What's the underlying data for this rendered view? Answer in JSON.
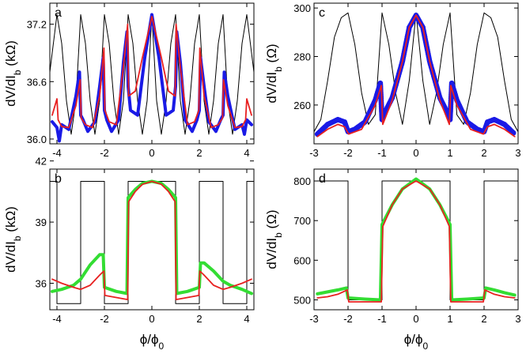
{
  "chart_data": [
    {
      "panel": "a",
      "type": "line",
      "ylabel_main": "dV/dI",
      "ylabel_sub": "b",
      "ylabel_unit": " (kΩ)",
      "xlim": [
        -4.3,
        4.3
      ],
      "ylim": [
        35.95,
        37.42
      ],
      "xticks": [
        -4,
        -2,
        0,
        2,
        4
      ],
      "xticklabels": [
        "-4",
        "-2",
        "0",
        "2",
        "4"
      ],
      "yticks": [
        36.0,
        36.6,
        37.2
      ],
      "yticklabels": [
        "36.0",
        "36.6",
        "37.2"
      ],
      "series": [
        {
          "role": "reference",
          "color": "#000000",
          "style": "thin-line",
          "x": [
            -4.3,
            -4.0,
            -3.8,
            -3.6,
            -3.4,
            -3.2,
            -3.0,
            -2.8,
            -2.6,
            -2.4,
            -2.2,
            -2.0,
            -1.8,
            -1.6,
            -1.4,
            -1.2,
            -1.0,
            -0.8,
            -0.6,
            -0.4,
            -0.2,
            0.0,
            0.2,
            0.4,
            0.6,
            0.8,
            1.0,
            1.2,
            1.4,
            1.6,
            1.8,
            2.0,
            2.2,
            2.4,
            2.6,
            2.8,
            3.0,
            3.2,
            3.4,
            3.6,
            3.8,
            4.0,
            4.3
          ],
          "y": [
            36.7,
            37.3,
            37.0,
            36.4,
            36.05,
            36.4,
            37.3,
            37.0,
            36.4,
            36.05,
            36.4,
            37.3,
            37.0,
            36.4,
            36.05,
            36.4,
            37.3,
            37.0,
            36.4,
            36.05,
            36.4,
            37.3,
            36.4,
            36.05,
            36.4,
            37.0,
            37.3,
            36.4,
            36.05,
            36.4,
            37.0,
            37.3,
            36.4,
            36.05,
            36.4,
            37.0,
            37.3,
            36.4,
            36.05,
            36.4,
            37.0,
            37.3,
            36.7
          ]
        },
        {
          "role": "measured",
          "color": "#1a1ae6",
          "style": "thick-line",
          "x": [
            -4.2,
            -4.0,
            -3.9,
            -3.8,
            -3.5,
            -3.2,
            -3.05,
            -3.0,
            -2.9,
            -2.7,
            -2.4,
            -2.2,
            -2.05,
            -2.0,
            -1.9,
            -1.7,
            -1.4,
            -1.2,
            -1.05,
            -1.0,
            -0.9,
            -0.6,
            -0.3,
            0.0,
            0.3,
            0.6,
            0.9,
            1.0,
            1.05,
            1.2,
            1.4,
            1.7,
            1.9,
            2.0,
            2.05,
            2.2,
            2.4,
            2.7,
            2.9,
            3.0,
            3.05,
            3.2,
            3.5,
            3.8,
            3.9,
            4.0,
            4.2
          ],
          "y": [
            36.18,
            36.12,
            35.98,
            36.15,
            36.1,
            36.45,
            36.7,
            36.25,
            36.2,
            36.08,
            36.18,
            36.55,
            36.85,
            36.3,
            36.2,
            36.08,
            36.2,
            36.8,
            37.12,
            36.55,
            36.3,
            36.25,
            36.85,
            37.3,
            36.85,
            36.25,
            36.3,
            36.55,
            37.12,
            36.8,
            36.2,
            36.08,
            36.2,
            36.3,
            36.85,
            36.55,
            36.18,
            36.08,
            36.2,
            36.25,
            36.7,
            36.45,
            36.1,
            36.15,
            36.05,
            36.2,
            36.15
          ]
        },
        {
          "role": "fit",
          "color": "#e82020",
          "style": "medium-line",
          "x": [
            -4.2,
            -4.0,
            -3.95,
            -3.8,
            -3.5,
            -3.2,
            -3.02,
            -2.98,
            -2.8,
            -2.5,
            -2.2,
            -2.02,
            -1.98,
            -1.8,
            -1.5,
            -1.2,
            -1.02,
            -0.98,
            -0.7,
            -0.4,
            0.0,
            0.4,
            0.7,
            0.98,
            1.02,
            1.2,
            1.5,
            1.8,
            1.98,
            2.02,
            2.2,
            2.5,
            2.8,
            2.98,
            3.02,
            3.2,
            3.5,
            3.8,
            3.95,
            4.0,
            4.2
          ],
          "y": [
            36.25,
            36.42,
            36.2,
            36.13,
            36.12,
            36.35,
            36.62,
            36.22,
            36.15,
            36.12,
            36.45,
            36.95,
            36.3,
            36.18,
            36.15,
            36.75,
            37.2,
            36.45,
            36.5,
            36.85,
            37.28,
            36.85,
            36.5,
            36.45,
            37.2,
            36.75,
            36.15,
            36.18,
            36.3,
            36.95,
            36.45,
            36.12,
            36.15,
            36.22,
            36.62,
            36.35,
            36.12,
            36.13,
            36.2,
            36.42,
            36.25
          ]
        }
      ]
    },
    {
      "panel": "b",
      "type": "line",
      "ylabel_main": "dV/dI",
      "ylabel_sub": "b",
      "ylabel_unit": " (kΩ)",
      "xlabel": "ϕ/ϕ",
      "xlabel_sub": "0",
      "xlim": [
        -4.3,
        4.3
      ],
      "ylim": [
        34.7,
        41.6
      ],
      "xticks": [
        -4,
        -2,
        0,
        2,
        4
      ],
      "xticklabels": [
        "-4",
        "-2",
        "0",
        "2",
        "4"
      ],
      "yticks": [
        36,
        39,
        42
      ],
      "yticklabels": [
        "36",
        "39",
        "42"
      ],
      "series": [
        {
          "role": "reference",
          "color": "#000000",
          "style": "thin-line",
          "x": [
            -4.3,
            -4.0,
            -4.0,
            -3.0,
            -3.0,
            -2.0,
            -2.0,
            -1.0,
            -1.0,
            1.0,
            1.0,
            2.0,
            2.0,
            3.0,
            3.0,
            4.0,
            4.0,
            4.3
          ],
          "y": [
            41.0,
            41.0,
            35.0,
            35.0,
            41.0,
            41.0,
            35.0,
            35.0,
            41.0,
            41.0,
            35.0,
            35.0,
            41.0,
            41.0,
            35.0,
            35.0,
            41.0,
            41.0
          ]
        },
        {
          "role": "measured",
          "color": "#33dd33",
          "style": "thick-line",
          "x": [
            -4.2,
            -3.8,
            -3.3,
            -3.0,
            -2.6,
            -2.2,
            -2.05,
            -2.0,
            -1.5,
            -1.05,
            -1.0,
            -0.7,
            -0.4,
            0.0,
            0.4,
            0.7,
            1.0,
            1.05,
            1.5,
            2.0,
            2.05,
            2.2,
            2.6,
            3.0,
            3.3,
            3.8,
            4.2
          ],
          "y": [
            35.6,
            35.7,
            35.9,
            36.2,
            36.9,
            37.4,
            37.4,
            35.8,
            35.6,
            35.5,
            40.2,
            40.6,
            40.9,
            41.0,
            40.9,
            40.6,
            40.2,
            35.5,
            35.6,
            35.8,
            37.0,
            37.0,
            36.6,
            36.1,
            35.9,
            35.7,
            35.5
          ]
        },
        {
          "role": "fit",
          "color": "#e82020",
          "style": "medium-line",
          "x": [
            -4.2,
            -3.8,
            -3.3,
            -3.0,
            -2.6,
            -2.2,
            -2.02,
            -1.98,
            -1.5,
            -1.02,
            -0.98,
            -0.7,
            -0.4,
            0.0,
            0.4,
            0.7,
            0.98,
            1.02,
            1.5,
            1.98,
            2.02,
            2.2,
            2.6,
            3.0,
            3.3,
            3.8,
            4.2
          ],
          "y": [
            36.2,
            36.0,
            35.8,
            35.7,
            35.9,
            36.4,
            36.6,
            35.4,
            35.3,
            35.2,
            40.0,
            40.5,
            40.85,
            41.0,
            40.85,
            40.5,
            40.0,
            35.2,
            35.3,
            35.4,
            36.6,
            36.4,
            35.9,
            35.7,
            35.8,
            36.0,
            36.2
          ]
        }
      ]
    },
    {
      "panel": "c",
      "type": "line",
      "ylabel_main": "dV/dI",
      "ylabel_sub": "b",
      "ylabel_unit": " (Ω)",
      "xlim": [
        -3.0,
        3.0
      ],
      "ylim": [
        244,
        302
      ],
      "xticks": [
        -3,
        -2,
        -1,
        0,
        1,
        2,
        3
      ],
      "xticklabels": [
        "-3",
        "-2",
        "-1",
        "0",
        "1",
        "2",
        "3"
      ],
      "yticks": [
        260,
        280,
        300
      ],
      "yticklabels": [
        "260",
        "280",
        "300"
      ],
      "series": [
        {
          "role": "reference",
          "color": "#000000",
          "style": "thin-line",
          "x": [
            -3.0,
            -2.8,
            -2.6,
            -2.4,
            -2.2,
            -2.0,
            -1.8,
            -1.6,
            -1.4,
            -1.2,
            -1.0,
            -0.8,
            -0.6,
            -0.4,
            -0.2,
            0.0,
            0.2,
            0.4,
            0.6,
            0.8,
            1.0,
            1.2,
            1.4,
            1.6,
            1.8,
            2.0,
            2.2,
            2.4,
            2.6,
            2.8,
            3.0
          ],
          "y": [
            249,
            254,
            270,
            288,
            296,
            298,
            285,
            265,
            252,
            256,
            298,
            285,
            265,
            252,
            270,
            298,
            270,
            252,
            265,
            285,
            298,
            256,
            252,
            265,
            285,
            298,
            296,
            288,
            270,
            254,
            249
          ]
        },
        {
          "role": "measured",
          "color": "#1a1ae6",
          "style": "dots",
          "x": [
            -2.9,
            -2.6,
            -2.3,
            -2.1,
            -2.0,
            -1.8,
            -1.5,
            -1.2,
            -1.05,
            -1.0,
            -0.95,
            -0.7,
            -0.4,
            -0.2,
            0.0,
            0.2,
            0.4,
            0.7,
            0.95,
            1.0,
            1.05,
            1.2,
            1.5,
            1.8,
            2.0,
            2.1,
            2.3,
            2.6,
            2.9
          ],
          "y": [
            248,
            252,
            254,
            253,
            249,
            250,
            253,
            262,
            269,
            254,
            256,
            263,
            278,
            292,
            297,
            292,
            278,
            263,
            256,
            254,
            269,
            262,
            253,
            250,
            249,
            253,
            254,
            252,
            248
          ]
        },
        {
          "role": "fit",
          "color": "#e82020",
          "style": "medium-line",
          "x": [
            -2.9,
            -2.6,
            -2.3,
            -2.1,
            -2.02,
            -1.98,
            -1.6,
            -1.2,
            -1.02,
            -0.98,
            -0.7,
            -0.4,
            -0.2,
            0.0,
            0.2,
            0.4,
            0.7,
            0.98,
            1.02,
            1.2,
            1.6,
            1.98,
            2.02,
            2.1,
            2.3,
            2.6,
            2.9
          ],
          "y": [
            247,
            250,
            252,
            251,
            249,
            248,
            250,
            260,
            268,
            252,
            262,
            278,
            292,
            297,
            292,
            278,
            262,
            252,
            268,
            260,
            250,
            248,
            249,
            251,
            252,
            250,
            247
          ]
        }
      ]
    },
    {
      "panel": "d",
      "type": "line",
      "ylabel_main": "dV/dI",
      "ylabel_sub": "b",
      "ylabel_unit": " (Ω)",
      "xlabel": "ϕ/ϕ",
      "xlabel_sub": "0",
      "xlim": [
        -3.0,
        3.0
      ],
      "ylim": [
        475,
        830
      ],
      "xticks": [
        -3,
        -2,
        -1,
        0,
        1,
        2,
        3
      ],
      "xticklabels": [
        "-3",
        "-2",
        "-1",
        "0",
        "1",
        "2",
        "3"
      ],
      "yticks": [
        500,
        600,
        700,
        800
      ],
      "yticklabels": [
        "500",
        "600",
        "700",
        "800"
      ],
      "series": [
        {
          "role": "reference",
          "color": "#000000",
          "style": "thin-line",
          "x": [
            -2.9,
            -2.0,
            -2.0,
            -1.0,
            -1.0,
            1.0,
            1.0,
            2.0,
            2.0,
            2.9
          ],
          "y": [
            800,
            800,
            500,
            500,
            800,
            800,
            500,
            500,
            800,
            800
          ]
        },
        {
          "role": "measured",
          "color": "#33dd33",
          "style": "thick-line",
          "x": [
            -2.9,
            -2.6,
            -2.3,
            -2.05,
            -2.0,
            -1.5,
            -1.05,
            -1.0,
            -0.7,
            -0.4,
            0.0,
            0.4,
            0.7,
            1.0,
            1.05,
            1.5,
            2.0,
            2.05,
            2.3,
            2.6,
            2.9
          ],
          "y": [
            515,
            520,
            525,
            530,
            505,
            502,
            500,
            690,
            740,
            780,
            805,
            780,
            740,
            690,
            500,
            502,
            505,
            530,
            525,
            518,
            512
          ]
        },
        {
          "role": "fit",
          "color": "#e82020",
          "style": "medium-line",
          "x": [
            -2.9,
            -2.6,
            -2.3,
            -2.02,
            -1.98,
            -1.5,
            -1.02,
            -0.98,
            -0.7,
            -0.4,
            0.0,
            0.4,
            0.7,
            0.98,
            1.02,
            1.5,
            1.98,
            2.02,
            2.3,
            2.6,
            2.9
          ],
          "y": [
            505,
            508,
            514,
            525,
            495,
            495,
            495,
            685,
            740,
            780,
            800,
            780,
            740,
            685,
            495,
            495,
            495,
            525,
            514,
            508,
            505
          ]
        }
      ]
    }
  ]
}
